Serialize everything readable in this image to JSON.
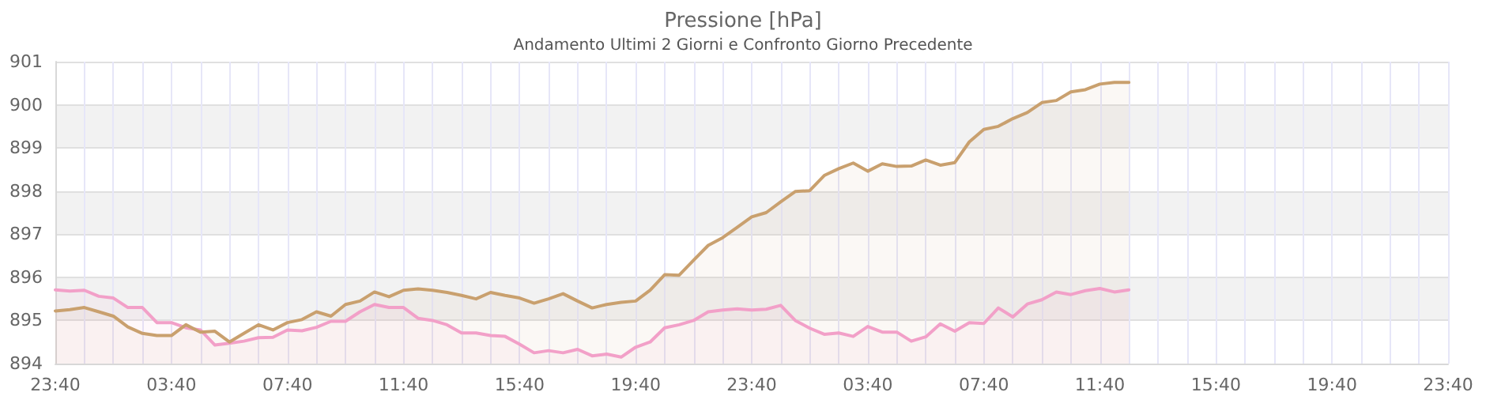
{
  "chart_data": {
    "type": "area",
    "title": "Pressione [hPa]",
    "subtitle": "Andamento Ultimi 2 Giorni e Confronto Giorno Precedente",
    "categories": [
      "23:40",
      null,
      null,
      null,
      null,
      null,
      null,
      null,
      "03:40",
      null,
      null,
      null,
      null,
      null,
      null,
      null,
      "07:40",
      null,
      null,
      null,
      null,
      null,
      null,
      null,
      "11:40",
      null,
      null,
      null,
      null,
      null,
      null,
      null,
      "15:40",
      null,
      null,
      null,
      null,
      null,
      null,
      null,
      "19:40",
      null,
      null,
      null,
      null,
      null,
      null,
      null,
      "23:40",
      null,
      null,
      null,
      null,
      null,
      null,
      null,
      "03:40",
      null,
      null,
      null,
      null,
      null,
      null,
      null,
      "07:40",
      null,
      null,
      null,
      null,
      null,
      null,
      null,
      "11:40",
      null,
      null,
      null,
      null,
      null,
      null,
      null,
      "15:40",
      null,
      null,
      null,
      null,
      null,
      null,
      null,
      "19:40",
      null,
      null,
      null,
      null,
      null,
      null,
      null,
      "23:40"
    ],
    "ylim": [
      894,
      901
    ],
    "yticks": [
      894,
      895,
      896,
      897,
      898,
      899,
      900,
      901
    ],
    "grid": true,
    "series": [
      {
        "color": "#f2a0c8",
        "values": [
          895.71,
          895.68,
          895.7,
          895.56,
          895.52,
          895.3,
          895.3,
          894.95,
          894.95,
          894.83,
          894.78,
          894.43,
          894.47,
          894.52,
          894.6,
          894.61,
          894.78,
          894.76,
          894.84,
          894.98,
          894.98,
          895.2,
          895.37,
          895.3,
          895.3,
          895.05,
          895.0,
          894.9,
          894.71,
          894.71,
          894.65,
          894.63,
          894.45,
          894.25,
          894.3,
          894.25,
          894.33,
          894.18,
          894.22,
          894.15,
          894.38,
          894.5,
          894.83,
          894.9,
          895.0,
          895.2,
          895.24,
          895.27,
          895.24,
          895.26,
          895.35,
          895.0,
          894.82,
          894.68,
          894.71,
          894.63,
          894.86,
          894.73,
          894.73,
          894.52,
          894.62,
          894.92,
          894.75,
          894.95,
          894.93,
          895.29,
          895.08,
          895.38,
          895.48,
          895.66,
          895.6,
          895.69,
          895.74,
          895.66,
          895.71,
          null,
          null,
          null,
          null,
          null,
          null,
          null,
          null,
          null,
          null,
          null,
          null,
          null,
          null,
          null,
          null,
          null,
          null,
          null,
          null,
          null,
          null
        ]
      },
      {
        "color": "#c9a06e",
        "values": [
          895.22,
          895.25,
          895.3,
          895.2,
          895.1,
          894.85,
          894.7,
          894.65,
          894.65,
          894.9,
          894.73,
          894.75,
          894.5,
          894.7,
          894.9,
          894.78,
          894.95,
          895.02,
          895.2,
          895.1,
          895.37,
          895.45,
          895.66,
          895.55,
          895.7,
          895.73,
          895.7,
          895.65,
          895.58,
          895.5,
          895.65,
          895.58,
          895.52,
          895.4,
          895.5,
          895.62,
          895.45,
          895.29,
          895.37,
          895.42,
          895.45,
          895.7,
          896.06,
          896.05,
          896.4,
          896.74,
          896.92,
          897.16,
          897.4,
          897.5,
          897.75,
          897.99,
          898.01,
          898.36,
          898.52,
          898.65,
          898.46,
          898.63,
          898.57,
          898.58,
          898.72,
          898.6,
          898.66,
          899.14,
          899.43,
          899.5,
          899.68,
          899.82,
          900.05,
          900.1,
          900.3,
          900.35,
          900.48,
          900.52,
          900.52,
          null,
          null,
          null,
          null,
          null,
          null,
          null,
          null,
          null,
          null,
          null,
          null,
          null,
          null,
          null,
          null,
          null,
          null,
          null,
          null,
          null,
          null
        ]
      }
    ]
  }
}
